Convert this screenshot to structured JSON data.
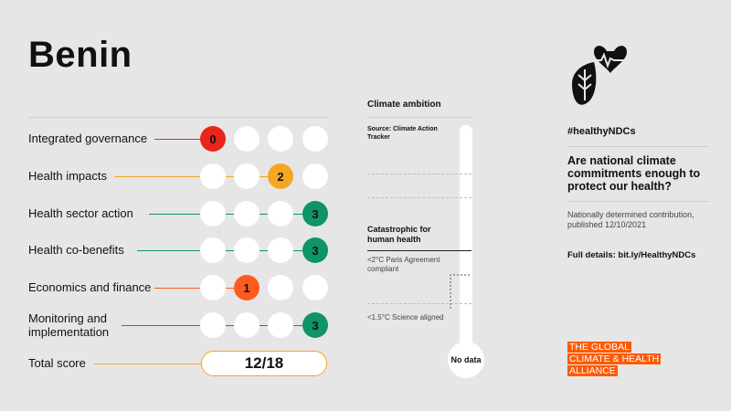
{
  "country": "Benin",
  "scores": {
    "rows": [
      {
        "label": "Integrated governance",
        "score": "0",
        "score_position": 0,
        "color": "#e8251b"
      },
      {
        "label": "Health impacts",
        "score": "2",
        "score_position": 2,
        "color": "#f5a623"
      },
      {
        "label": "Health sector action",
        "score": "3",
        "score_position": 3,
        "color": "#0e9466"
      },
      {
        "label": "Health co-benefits",
        "score": "3",
        "score_position": 3,
        "color": "#0e9466"
      },
      {
        "label": "Economics and finance",
        "score": "1",
        "score_position": 1,
        "color": "#ff5a1f"
      },
      {
        "label": "Monitoring and implementation",
        "score": "3",
        "score_position": 3,
        "color": "#0e9466"
      }
    ],
    "total_label": "Total score",
    "total_value": "12/18",
    "total_color": "#f5a623"
  },
  "climate": {
    "title": "Climate ambition",
    "source": "Source: Climate Action Tracker",
    "catastrophic": "Catastrophic for human health",
    "level_2c": "<2°C Paris Agreement compliant",
    "level_15c": "<1.5°C Science aligned",
    "rating": "No data"
  },
  "sidebar": {
    "icon": "heart-plant-drop-icon",
    "hashtag": "#healthyNDCs",
    "question": "Are national climate commitments enough to protect our health?",
    "ndc_info": "Nationally determined contribution, published 12/10/2021",
    "details": "Full details: bit.ly/HealthyNDCs"
  },
  "logo": {
    "line1": "THE GLOBAL",
    "line2": "CLIMATE & HEALTH",
    "line3": "ALLIANCE",
    "color": "#ff5a00"
  }
}
